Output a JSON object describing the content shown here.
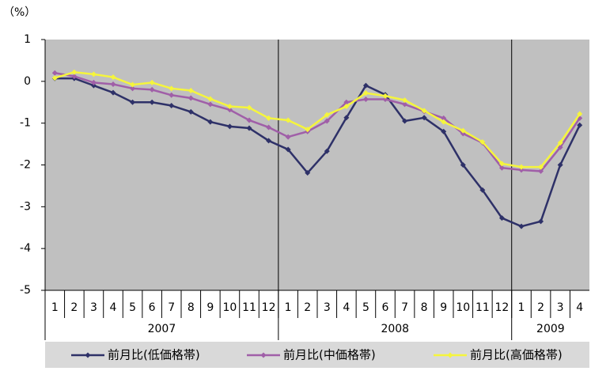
{
  "chart_data": {
    "type": "line",
    "y_label": "（%）",
    "categories": [
      "1",
      "2",
      "3",
      "4",
      "5",
      "6",
      "7",
      "8",
      "9",
      "10",
      "11",
      "12",
      "1",
      "2",
      "3",
      "4",
      "5",
      "6",
      "7",
      "8",
      "9",
      "10",
      "11",
      "12",
      "1",
      "2",
      "3",
      "4"
    ],
    "years": [
      "2007",
      "2008",
      "2009"
    ],
    "series": [
      {
        "name": "前月比(低価格帯)",
        "color": "#2e3168",
        "values": [
          0.07,
          0.07,
          -0.1,
          -0.27,
          -0.5,
          -0.5,
          -0.58,
          -0.73,
          -0.97,
          -1.08,
          -1.12,
          -1.42,
          -1.63,
          -2.19,
          -1.67,
          -0.87,
          -0.1,
          -0.32,
          -0.95,
          -0.87,
          -1.2,
          -2.0,
          -2.6,
          -3.27,
          -3.47,
          -3.35,
          -2.0,
          -1.05
        ]
      },
      {
        "name": "前月比(中価格帯)",
        "color": "#a05fa8",
        "values": [
          0.2,
          0.12,
          -0.03,
          -0.07,
          -0.17,
          -0.2,
          -0.33,
          -0.4,
          -0.55,
          -0.68,
          -0.93,
          -1.1,
          -1.33,
          -1.2,
          -0.95,
          -0.5,
          -0.43,
          -0.43,
          -0.55,
          -0.72,
          -0.88,
          -1.25,
          -1.47,
          -2.07,
          -2.12,
          -2.15,
          -1.58,
          -0.88
        ]
      },
      {
        "name": "前月比(高価格帯)",
        "color": "#f5f53c",
        "values": [
          0.08,
          0.22,
          0.17,
          0.1,
          -0.08,
          -0.03,
          -0.17,
          -0.22,
          -0.42,
          -0.6,
          -0.63,
          -0.88,
          -0.93,
          -1.15,
          -0.8,
          -0.6,
          -0.28,
          -0.35,
          -0.45,
          -0.7,
          -0.97,
          -1.18,
          -1.45,
          -1.97,
          -2.05,
          -2.05,
          -1.47,
          -0.78
        ]
      }
    ],
    "ylim": [
      -5,
      1
    ],
    "yticks": [
      1,
      0,
      -1,
      -2,
      -3,
      -4,
      -5
    ],
    "plot_background": "#c0c0c0",
    "legend": "bottom"
  }
}
